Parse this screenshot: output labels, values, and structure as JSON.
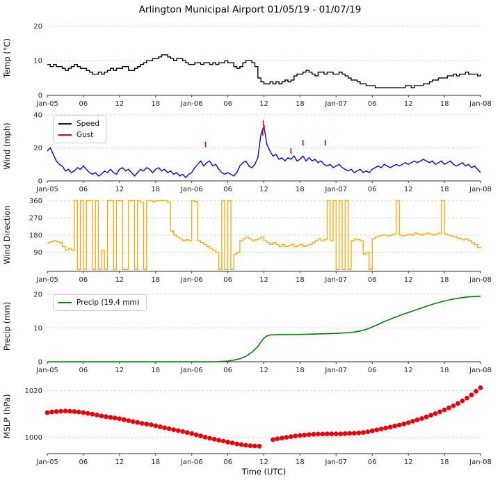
{
  "chart_data": {
    "type": "line",
    "title": "Arlington Municipal Airport 01/05/19 - 01/07/19",
    "xlabel": "Time (UTC)",
    "x_range": [
      0,
      72
    ],
    "x_unit": "hours since Jan-05 00:00 UTC",
    "grid": "horizontal-dashed",
    "x_ticks": {
      "positions": [
        0,
        6,
        12,
        18,
        24,
        30,
        36,
        42,
        48,
        54,
        60,
        66,
        72
      ],
      "labels": [
        "Jan-05",
        "06",
        "12",
        "18",
        "Jan-06",
        "06",
        "12",
        "18",
        "Jan-07",
        "06",
        "12",
        "18",
        "Jan-08"
      ]
    },
    "subplots": [
      {
        "name": "temperature",
        "ylabel": "Temp (°C)",
        "ylim": [
          0,
          21.5
        ],
        "yticks": [
          0,
          10,
          20
        ],
        "series": [
          {
            "name": "temp",
            "label": "Temperature",
            "draw": "step",
            "color": "#000000",
            "width": 1.4,
            "x_start": 0,
            "x_step": 0.5,
            "y": [
              8.9,
              8.3,
              8.9,
              8.3,
              8.3,
              7.8,
              7.2,
              7.8,
              8.3,
              8.9,
              8.3,
              7.8,
              7.8,
              7.2,
              6.7,
              6.1,
              6.1,
              6.7,
              6.1,
              6.7,
              7.2,
              7.8,
              7.2,
              7.8,
              7.8,
              8.3,
              8.3,
              7.2,
              7.2,
              7.8,
              8.3,
              8.9,
              9.4,
              10,
              10,
              10.6,
              10.6,
              11.1,
              11.7,
              11.7,
              11.1,
              10.6,
              10,
              10.6,
              10.6,
              10,
              9.4,
              8.9,
              8.9,
              9.4,
              9.4,
              8.9,
              9.4,
              9.4,
              8.9,
              9.4,
              8.9,
              9.4,
              9.4,
              10,
              9.4,
              9.4,
              8.3,
              7.8,
              8.3,
              9.4,
              10,
              10,
              9.4,
              8.3,
              5,
              3.9,
              3.3,
              3.3,
              3.9,
              3.3,
              3.9,
              3.3,
              3.9,
              4.4,
              3.9,
              4.4,
              5.6,
              6.1,
              6.1,
              6.7,
              7.2,
              6.7,
              6.1,
              5.6,
              6.7,
              6.7,
              6.1,
              6.7,
              6.7,
              6.1,
              6.1,
              6.7,
              6.1,
              5.6,
              5,
              4.4,
              4.4,
              3.9,
              3.3,
              3.3,
              2.8,
              2.8,
              2.8,
              2.2,
              2.2,
              2.2,
              2.2,
              2.2,
              2.2,
              2.2,
              2.2,
              2.2,
              2.2,
              2.8,
              2.8,
              2.2,
              2.8,
              2.8,
              2.8,
              3.3,
              3.3,
              3.9,
              4.4,
              4.4,
              5,
              5,
              5,
              5.6,
              5.6,
              6.1,
              5.6,
              6.1,
              6.1,
              6.7,
              6.1,
              6.1,
              6.1,
              5.6,
              6.1
            ]
          }
        ]
      },
      {
        "name": "wind",
        "ylabel": "Wind (mph)",
        "ylim": [
          0,
          42
        ],
        "yticks": [
          0,
          20,
          40
        ],
        "legend": {
          "loc": "upper left",
          "entries": [
            "Speed",
            "Gust"
          ]
        },
        "series": [
          {
            "name": "speed",
            "label": "Speed",
            "draw": "line",
            "color": "#0000ee",
            "width": 1.4,
            "x_start": 0,
            "x_step": 0.5,
            "y": [
              18,
              20,
              16,
              12,
              10,
              9,
              6,
              7,
              5,
              6,
              8,
              7,
              9,
              7,
              5,
              4,
              5,
              3,
              4,
              6,
              5,
              7,
              5,
              4,
              7,
              8,
              6,
              7,
              5,
              3,
              5,
              7,
              6,
              8,
              7,
              5,
              7,
              8,
              6,
              7,
              5,
              6,
              4,
              5,
              3,
              4,
              2,
              4,
              5,
              8,
              10,
              12,
              9,
              11,
              12,
              9,
              10,
              7,
              5,
              4,
              5,
              4,
              3,
              5,
              9,
              11,
              12,
              9,
              8,
              10,
              14,
              28,
              33,
              22,
              18,
              15,
              16,
              13,
              14,
              12,
              14,
              13,
              15,
              12,
              13,
              15,
              12,
              14,
              12,
              13,
              11,
              12,
              10,
              9,
              10,
              8,
              9,
              10,
              8,
              7,
              6,
              7,
              5,
              6,
              7,
              5,
              6,
              5,
              7,
              8,
              9,
              8,
              10,
              9,
              8,
              9,
              10,
              9,
              10,
              11,
              10,
              11,
              12,
              11,
              12,
              13,
              12,
              11,
              12,
              10,
              11,
              12,
              10,
              11,
              12,
              10,
              9,
              10,
              11,
              9,
              10,
              8,
              9,
              7,
              5
            ]
          },
          {
            "name": "gust",
            "label": "Gust",
            "draw": "vticks",
            "color": "#e60000",
            "x": [
              26.3,
              35.8,
              35.9,
              36.05,
              40.5,
              42.5,
              46.2
            ],
            "y": [
              22,
              29,
              35,
              32,
              18,
              23,
              23
            ]
          }
        ]
      },
      {
        "name": "wind-direction",
        "ylabel": "Wind Direction",
        "ylim": [
          -10,
          372
        ],
        "yticks": [
          90,
          180,
          270,
          360
        ],
        "series": [
          {
            "name": "direction",
            "label": "Wind Direction",
            "draw": "step",
            "color": "#ffa500",
            "width": 1.3,
            "x_start": 0,
            "x_step": 0.5,
            "y": [
              140,
              145,
              150,
              145,
              140,
              120,
              100,
              110,
              100,
              360,
              0,
              360,
              0,
              360,
              360,
              0,
              360,
              0,
              100,
              0,
              360,
              360,
              0,
              360,
              360,
              0,
              0,
              360,
              360,
              0,
              360,
              350,
              0,
              360,
              360,
              355,
              360,
              360,
              360,
              360,
              350,
              200,
              180,
              170,
              160,
              150,
              155,
              150,
              360,
              355,
              150,
              140,
              130,
              120,
              110,
              100,
              90,
              0,
              360,
              0,
              360,
              0,
              80,
              90,
              150,
              160,
              170,
              160,
              150,
              155,
              160,
              170,
              150,
              140,
              130,
              140,
              130,
              120,
              130,
              120,
              125,
              130,
              120,
              125,
              130,
              120,
              125,
              130,
              140,
              150,
              160,
              150,
              155,
              360,
              150,
              360,
              0,
              360,
              0,
              360,
              0,
              150,
              160,
              155,
              150,
              80,
              90,
              0,
              160,
              170,
              175,
              180,
              180,
              175,
              180,
              185,
              360,
              180,
              175,
              180,
              185,
              180,
              190,
              185,
              180,
              185,
              190,
              185,
              180,
              185,
              190,
              360,
              185,
              180,
              175,
              170,
              165,
              160,
              155,
              160,
              150,
              140,
              130,
              115,
              110
            ]
          }
        ]
      },
      {
        "name": "precip",
        "ylabel": "Precip (mm)",
        "ylim": [
          0,
          21
        ],
        "yticks": [
          0,
          10,
          20
        ],
        "legend": {
          "loc": "upper left",
          "entries": [
            "Precip (19.4 mm)"
          ]
        },
        "series": [
          {
            "name": "precip",
            "label": "Precip (19.4 mm)",
            "draw": "line",
            "color": "#007f00",
            "width": 1.6,
            "x": [
              0,
              28,
              29,
              30,
              31,
              32,
              33,
              34,
              35,
              35.5,
              36,
              36.5,
              37,
              38,
              40,
              42,
              44,
              46,
              48,
              49,
              50,
              51,
              52,
              53,
              54,
              55,
              56,
              57,
              58,
              59,
              60,
              61,
              62,
              63,
              64,
              65,
              66,
              67,
              68,
              69,
              70,
              71,
              72
            ],
            "y": [
              0,
              0,
              0.1,
              0.2,
              0.5,
              0.9,
              1.6,
              2.8,
              4.5,
              5.8,
              7.0,
              7.6,
              7.9,
              8.0,
              8.1,
              8.1,
              8.2,
              8.3,
              8.4,
              8.5,
              8.6,
              8.8,
              9.1,
              9.6,
              10.3,
              11.1,
              11.9,
              12.6,
              13.3,
              14.0,
              14.6,
              15.2,
              15.8,
              16.4,
              17.0,
              17.5,
              18.0,
              18.4,
              18.7,
              19.0,
              19.2,
              19.3,
              19.4
            ]
          }
        ]
      },
      {
        "name": "mslp",
        "ylabel": "MSLP (hPa)",
        "ylim": [
          993,
          1025
        ],
        "yticks": [
          1000,
          1020
        ],
        "series": [
          {
            "name": "mslp",
            "label": "MSLP",
            "draw": "dots",
            "color": "#e8000b",
            "x": [
              0,
              0.75,
              1.5,
              2.25,
              3,
              3.75,
              4.5,
              5.25,
              6,
              6.75,
              7.5,
              8.25,
              9,
              9.75,
              10.5,
              11.25,
              12,
              12.75,
              13.5,
              14.25,
              15,
              15.75,
              16.5,
              17.25,
              18,
              18.75,
              19.5,
              20.25,
              21,
              21.75,
              22.5,
              23.25,
              24,
              24.75,
              25.5,
              26.25,
              27,
              27.75,
              28.5,
              29.25,
              30,
              30.75,
              31.5,
              32.25,
              33,
              33.75,
              34.5,
              35.25,
              37.5,
              38.25,
              39,
              39.75,
              40.5,
              41.25,
              42,
              42.75,
              43.5,
              44.25,
              45,
              45.75,
              46.5,
              47.25,
              48,
              48.75,
              49.5,
              50.25,
              51,
              51.75,
              52.5,
              53.25,
              54,
              54.75,
              55.5,
              56.25,
              57,
              57.75,
              58.5,
              59.25,
              60,
              60.75,
              61.5,
              62.25,
              63,
              63.75,
              64.5,
              65.25,
              66,
              66.75,
              67.5,
              68.25,
              69,
              69.75,
              70.5,
              71.25,
              72
            ],
            "y": [
              1010.6,
              1010.9,
              1011.1,
              1011.2,
              1011.3,
              1011.2,
              1011.1,
              1010.9,
              1010.6,
              1010.3,
              1010.0,
              1009.6,
              1009.2,
              1008.9,
              1008.6,
              1008.3,
              1008.0,
              1007.6,
              1007.2,
              1006.8,
              1006.4,
              1006.0,
              1005.7,
              1005.4,
              1005.0,
              1004.5,
              1004.1,
              1003.7,
              1003.3,
              1002.9,
              1002.5,
              1002.1,
              1001.6,
              1001.1,
              1000.6,
              1000.1,
              999.6,
              999.2,
              998.8,
              998.4,
              998.0,
              997.6,
              997.2,
              996.9,
              996.6,
              996.4,
              996.3,
              996.2,
              999.0,
              999.4,
              999.7,
              1000.0,
              1000.3,
              1000.6,
              1000.8,
              1001.0,
              1001.2,
              1001.3,
              1001.4,
              1001.4,
              1001.5,
              1001.5,
              1001.5,
              1001.5,
              1001.6,
              1001.7,
              1001.8,
              1001.9,
              1002.1,
              1002.4,
              1002.8,
              1003.2,
              1003.6,
              1004.0,
              1004.4,
              1004.9,
              1005.3,
              1005.8,
              1006.3,
              1006.9,
              1007.5,
              1008.1,
              1008.8,
              1009.5,
              1010.2,
              1011.0,
              1011.8,
              1012.7,
              1013.6,
              1014.6,
              1015.7,
              1016.9,
              1018.2,
              1019.8,
              1021.3
            ]
          }
        ]
      }
    ]
  }
}
